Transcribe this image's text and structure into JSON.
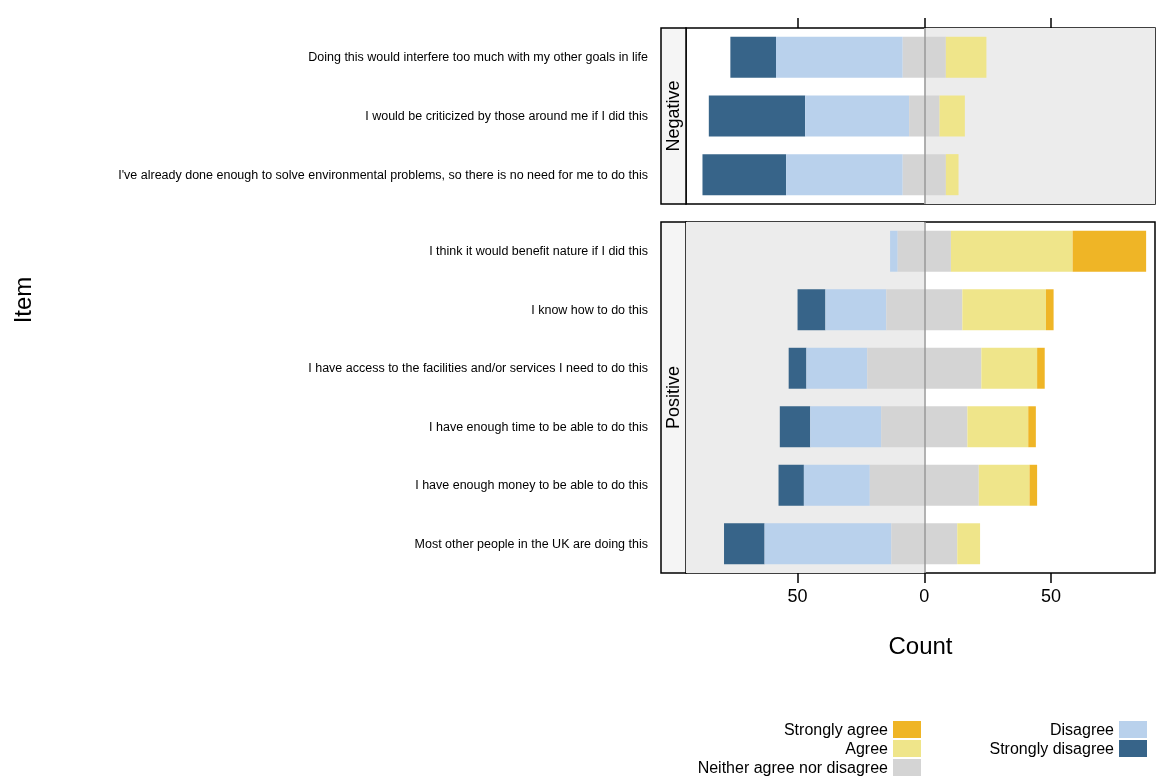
{
  "chart_data": [
    {
      "type": "bar",
      "orientation": "horizontal",
      "title": "Negative",
      "categories": [
        "Doing this would interfere too much with my other goals in life",
        "I would be criticized by those around me if I did this",
        "I've already done enough to solve environmental problems, so there is no need for me to do this"
      ],
      "series": [
        {
          "color": "#376489",
          "values": [
            18,
            38,
            33
          ],
          "base": [
            -76.5,
            -85,
            -87.5
          ]
        },
        {
          "color": "#b9d1ec",
          "values": [
            50,
            41,
            46
          ],
          "base": [
            -58.5,
            -47,
            -54.5
          ]
        },
        {
          "color": "#d4d4d4",
          "values": [
            17,
            12,
            17
          ],
          "base": [
            -8.5,
            -6,
            -8.5
          ]
        },
        {
          "color": "#efe58a",
          "values": [
            16,
            10,
            5
          ],
          "base": [
            8.5,
            6,
            8.5
          ]
        },
        {
          "color": "#efb526",
          "values": [
            0,
            0,
            0
          ],
          "base": [
            null,
            null,
            null
          ]
        }
      ],
      "xlim": [
        -94,
        91
      ],
      "xticks": [
        {
          "value": -50,
          "label": null
        },
        {
          "value": 0,
          "label": null
        },
        {
          "value": 50,
          "label": null
        }
      ],
      "tick_labels": "y",
      "bands": [
        {
          "axis": "x",
          "from": 0,
          "to": 91,
          "color": "#ececec"
        }
      ],
      "ref_lines": [
        {
          "axis": "x",
          "value": 0,
          "color": "#999999"
        }
      ],
      "legend": false,
      "grid": false
    },
    {
      "type": "bar",
      "orientation": "horizontal",
      "title": "Positive",
      "xlabel": "Count",
      "ylabel": "Item",
      "categories": [
        "I think it would benefit nature if I did this",
        "I know how to do this",
        "I have access to the facilities and/or services I need to do this",
        "I have enough time to be able to do this",
        "I have enough money to be able to do this",
        "Most other people in the UK are doing this"
      ],
      "series": [
        {
          "name": "Strongly disagree",
          "color": "#376489",
          "values": [
            0,
            11,
            7,
            12,
            10,
            16
          ],
          "base": [
            null,
            -50,
            -53.5,
            -57,
            -57.5,
            -79
          ]
        },
        {
          "name": "Disagree",
          "color": "#b9d1ec",
          "values": [
            3,
            24,
            24,
            28,
            26,
            50
          ],
          "base": [
            -13.5,
            -39,
            -46.5,
            -45,
            -47.5,
            -63
          ]
        },
        {
          "name": "Neither agree nor disagree",
          "color": "#d4d4d4",
          "values": [
            21,
            30,
            45,
            34,
            43,
            26
          ],
          "base": [
            -10.5,
            -15,
            -22.5,
            -17,
            -21.5,
            -13
          ]
        },
        {
          "name": "Agree",
          "color": "#efe58a",
          "values": [
            48,
            33,
            22,
            24,
            20,
            9
          ],
          "base": [
            10.5,
            15,
            22.5,
            17,
            21.5,
            13
          ]
        },
        {
          "name": "Strongly agree",
          "color": "#efb526",
          "values": [
            29,
            3,
            3,
            3,
            3,
            0
          ],
          "base": [
            58.5,
            48,
            44.5,
            41,
            41.5,
            null
          ]
        }
      ],
      "xlim": [
        -94,
        91
      ],
      "xticks": [
        {
          "value": -50,
          "label": "50"
        },
        0,
        {
          "value": 50,
          "label": "50"
        }
      ],
      "bands": [
        {
          "axis": "x",
          "from": -94,
          "to": 0,
          "color": "#ececec"
        }
      ],
      "ref_lines": [
        {
          "axis": "x",
          "value": 0,
          "color": "#999999"
        }
      ],
      "legend": "bottom",
      "grid": false
    }
  ]
}
